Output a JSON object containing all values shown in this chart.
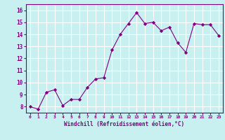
{
  "x": [
    0,
    1,
    2,
    3,
    4,
    5,
    6,
    7,
    8,
    9,
    10,
    11,
    12,
    13,
    14,
    15,
    16,
    17,
    18,
    19,
    20,
    21,
    22,
    23
  ],
  "y": [
    8.0,
    7.8,
    9.2,
    9.4,
    8.1,
    8.6,
    8.6,
    9.6,
    10.3,
    10.4,
    12.7,
    14.0,
    14.9,
    15.8,
    14.9,
    15.0,
    14.3,
    14.6,
    13.3,
    12.5,
    14.9,
    14.8,
    14.8,
    13.9
  ],
  "line_color": "#800080",
  "marker": "D",
  "marker_size": 2.2,
  "bg_color": "#c8f0f0",
  "grid_color": "#ffffff",
  "xlabel": "Windchill (Refroidissement éolien,°C)",
  "ylabel_ticks": [
    8,
    9,
    10,
    11,
    12,
    13,
    14,
    15,
    16
  ],
  "xlim": [
    -0.5,
    23.5
  ],
  "ylim": [
    7.5,
    16.5
  ],
  "tick_color": "#800080",
  "label_color": "#800080",
  "spine_color": "#800080"
}
